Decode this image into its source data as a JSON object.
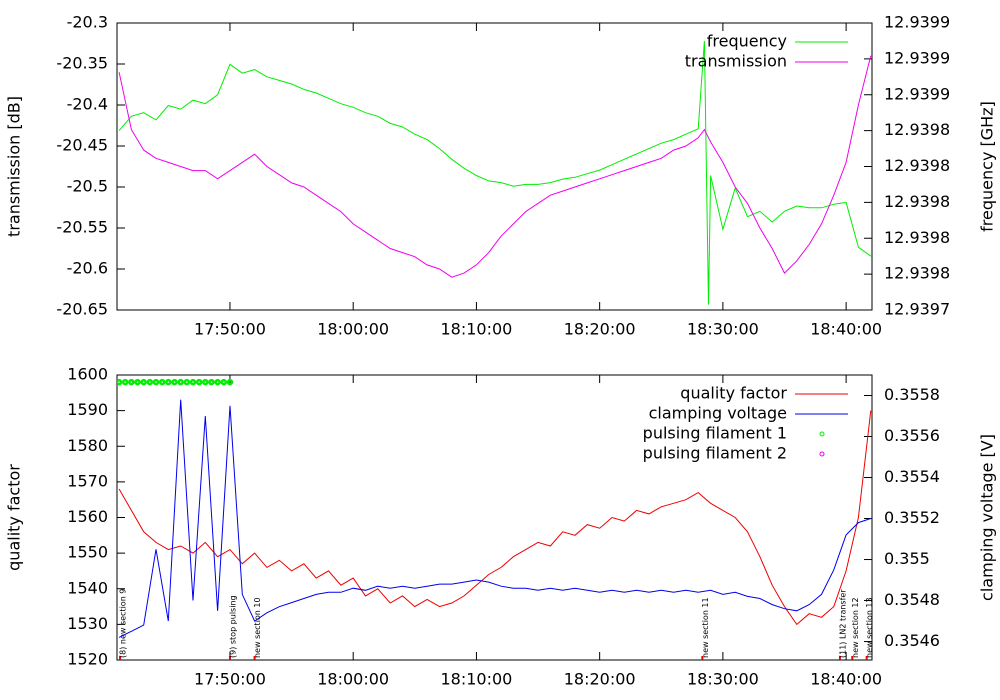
{
  "chart_data": [
    {
      "type": "line",
      "ylabel": "transmission [dB]",
      "y2label": "frequency [GHz]",
      "legend": "upper right",
      "x": [
        "17:41:00",
        "17:42:00",
        "17:43:00",
        "17:44:00",
        "17:45:00",
        "17:46:00",
        "17:47:00",
        "17:48:00",
        "17:49:00",
        "17:50:00",
        "17:51:00",
        "17:52:00",
        "17:53:00",
        "17:54:00",
        "17:55:00",
        "17:56:00",
        "17:57:00",
        "17:58:00",
        "17:59:00",
        "18:00:00",
        "18:01:00",
        "18:02:00",
        "18:03:00",
        "18:04:00",
        "18:05:00",
        "18:06:00",
        "18:07:00",
        "18:08:00",
        "18:09:00",
        "18:10:00",
        "18:11:00",
        "18:12:00",
        "18:13:00",
        "18:14:00",
        "18:15:00",
        "18:16:00",
        "18:17:00",
        "18:18:00",
        "18:19:00",
        "18:20:00",
        "18:21:00",
        "18:22:00",
        "18:23:00",
        "18:24:00",
        "18:25:00",
        "18:26:00",
        "18:27:00",
        "18:28:00",
        "18:28:30",
        "18:28:50",
        "18:29:00",
        "18:30:00",
        "18:31:00",
        "18:32:00",
        "18:33:00",
        "18:34:00",
        "18:35:00",
        "18:36:00",
        "18:37:00",
        "18:38:00",
        "18:39:00",
        "18:40:00",
        "18:41:00",
        "18:42:00"
      ],
      "xlim": [
        "17:40:50",
        "18:42:06"
      ],
      "xticks": [
        "17:50:00",
        "18:00:00",
        "18:10:00",
        "18:20:00",
        "18:30:00",
        "18:40:00"
      ],
      "ylim": [
        -20.65,
        -20.3
      ],
      "yticks": [
        -20.65,
        -20.6,
        -20.55,
        -20.5,
        -20.45,
        -20.4,
        -20.35,
        -20.3
      ],
      "y2lim": [
        12.93974,
        12.9399
      ],
      "y2ticks": [
        {
          "value": 12.93974,
          "label": "12.9397"
        },
        {
          "value": 12.93976,
          "label": "12.9398"
        },
        {
          "value": 12.93978,
          "label": "12.9398"
        },
        {
          "value": 12.9398,
          "label": "12.9398"
        },
        {
          "value": 12.93982,
          "label": "12.9398"
        },
        {
          "value": 12.93984,
          "label": "12.9398"
        },
        {
          "value": 12.93986,
          "label": "12.9399"
        },
        {
          "value": 12.93988,
          "label": "12.9399"
        },
        {
          "value": 12.9399,
          "label": "12.9399"
        }
      ],
      "series": [
        {
          "name": "frequency",
          "color": "#00ee00",
          "axis": "y2",
          "values": [
            12.93984,
            12.939848,
            12.93985,
            12.939846,
            12.939854,
            12.939852,
            12.939857,
            12.939855,
            12.93986,
            12.939877,
            12.939872,
            12.939874,
            12.93987,
            12.939868,
            12.939866,
            12.939863,
            12.939861,
            12.939858,
            12.939855,
            12.939853,
            12.93985,
            12.939848,
            12.939844,
            12.939842,
            12.939838,
            12.939835,
            12.93983,
            12.939824,
            12.939819,
            12.939815,
            12.939812,
            12.939811,
            12.939809,
            12.93981,
            12.93981,
            12.939811,
            12.939813,
            12.939814,
            12.939816,
            12.939818,
            12.939821,
            12.939824,
            12.939827,
            12.93983,
            12.939833,
            12.939835,
            12.939838,
            12.939841,
            12.93989,
            12.939743,
            12.939815,
            12.939785,
            12.939808,
            12.939792,
            12.939795,
            12.939789,
            12.939795,
            12.939798,
            12.939797,
            12.939797,
            12.939799,
            12.9398,
            12.939775,
            12.93977
          ]
        },
        {
          "name": "transmission",
          "color": "#ee00ee",
          "values": [
            -20.36,
            -20.43,
            -20.455,
            -20.465,
            -20.47,
            -20.475,
            -20.48,
            -20.48,
            -20.49,
            -20.48,
            -20.47,
            -20.46,
            -20.475,
            -20.485,
            -20.495,
            -20.5,
            -20.51,
            -20.52,
            -20.53,
            -20.545,
            -20.555,
            -20.565,
            -20.575,
            -20.58,
            -20.585,
            -20.595,
            -20.6,
            -20.61,
            -20.605,
            -20.595,
            -20.58,
            -20.56,
            -20.545,
            -20.53,
            -20.52,
            -20.51,
            -20.505,
            -20.5,
            -20.495,
            -20.49,
            -20.485,
            -20.48,
            -20.475,
            -20.47,
            -20.465,
            -20.455,
            -20.45,
            -20.44,
            -20.43,
            -20.44,
            -20.445,
            -20.47,
            -20.5,
            -20.52,
            -20.55,
            -20.575,
            -20.605,
            -20.59,
            -20.57,
            -20.545,
            -20.51,
            -20.47,
            -20.4,
            -20.34
          ]
        }
      ]
    },
    {
      "type": "line",
      "ylabel": "quality factor",
      "y2label": "clamping voltage [V]",
      "legend": "upper right",
      "x": [
        "17:41:00",
        "17:42:00",
        "17:43:00",
        "17:44:00",
        "17:45:00",
        "17:46:00",
        "17:47:00",
        "17:48:00",
        "17:49:00",
        "17:50:00",
        "17:51:00",
        "17:52:00",
        "17:53:00",
        "17:54:00",
        "17:55:00",
        "17:56:00",
        "17:57:00",
        "17:58:00",
        "17:59:00",
        "18:00:00",
        "18:01:00",
        "18:02:00",
        "18:03:00",
        "18:04:00",
        "18:05:00",
        "18:06:00",
        "18:07:00",
        "18:08:00",
        "18:09:00",
        "18:10:00",
        "18:11:00",
        "18:12:00",
        "18:13:00",
        "18:14:00",
        "18:15:00",
        "18:16:00",
        "18:17:00",
        "18:18:00",
        "18:19:00",
        "18:20:00",
        "18:21:00",
        "18:22:00",
        "18:23:00",
        "18:24:00",
        "18:25:00",
        "18:26:00",
        "18:27:00",
        "18:28:00",
        "18:29:00",
        "18:30:00",
        "18:31:00",
        "18:32:00",
        "18:33:00",
        "18:34:00",
        "18:35:00",
        "18:36:00",
        "18:37:00",
        "18:38:00",
        "18:39:00",
        "18:40:00",
        "18:41:00",
        "18:42:00"
      ],
      "xlim": [
        "17:40:50",
        "18:42:06"
      ],
      "xticks": [
        "17:50:00",
        "18:00:00",
        "18:10:00",
        "18:20:00",
        "18:30:00",
        "18:40:00"
      ],
      "ylim": [
        1520,
        1600
      ],
      "yticks": [
        1520,
        1530,
        1540,
        1550,
        1560,
        1570,
        1580,
        1590,
        1600
      ],
      "y2lim": [
        0.35451,
        0.3559
      ],
      "y2ticks": [
        0.3546,
        0.3548,
        0.355,
        0.3552,
        0.3554,
        0.3556,
        0.3558
      ],
      "series": [
        {
          "name": "quality factor",
          "color": "#ee0000",
          "values": [
            1568,
            1562,
            1556,
            1553,
            1551,
            1552,
            1550,
            1553,
            1549,
            1551,
            1547,
            1550,
            1546,
            1548,
            1545,
            1547,
            1543,
            1545,
            1541,
            1543,
            1538,
            1540,
            1536,
            1538,
            1535,
            1537,
            1535,
            1536,
            1538,
            1541,
            1544,
            1546,
            1549,
            1551,
            1553,
            1552,
            1556,
            1555,
            1558,
            1557,
            1560,
            1559,
            1562,
            1561,
            1563,
            1564,
            1565,
            1567,
            1564,
            1562,
            1560,
            1556,
            1549,
            1541,
            1535,
            1530,
            1533,
            1532,
            1535,
            1545,
            1560,
            1590
          ]
        },
        {
          "name": "clamping voltage",
          "color": "#0000ee",
          "axis": "y2",
          "values": [
            0.35462,
            0.35465,
            0.35468,
            0.35505,
            0.3547,
            0.35578,
            0.3548,
            0.3557,
            0.35475,
            0.35575,
            0.35483,
            0.3547,
            0.35474,
            0.35477,
            0.35479,
            0.35481,
            0.35483,
            0.35484,
            0.35484,
            0.35486,
            0.35485,
            0.35487,
            0.35486,
            0.35487,
            0.35486,
            0.35487,
            0.35488,
            0.35488,
            0.35489,
            0.3549,
            0.35489,
            0.35487,
            0.35486,
            0.35486,
            0.35485,
            0.35486,
            0.35485,
            0.35486,
            0.35485,
            0.35484,
            0.35485,
            0.35484,
            0.35485,
            0.35484,
            0.35485,
            0.35484,
            0.35485,
            0.35484,
            0.35485,
            0.35483,
            0.35484,
            0.35482,
            0.35481,
            0.35478,
            0.35476,
            0.35475,
            0.35478,
            0.35483,
            0.35495,
            0.35512,
            0.35518,
            0.3552
          ]
        },
        {
          "name": "pulsing filament 1",
          "color": "#00ee00",
          "style": "points",
          "x": [
            "17:41:00",
            "17:41:30",
            "17:42:00",
            "17:42:30",
            "17:43:00",
            "17:43:30",
            "17:44:00",
            "17:44:30",
            "17:45:00",
            "17:45:30",
            "17:46:00",
            "17:46:30",
            "17:47:00",
            "17:47:30",
            "17:48:00",
            "17:48:30",
            "17:49:00",
            "17:49:30",
            "17:50:00"
          ],
          "values": [
            1598,
            1598,
            1598,
            1598,
            1598,
            1598,
            1598,
            1598,
            1598,
            1598,
            1598,
            1598,
            1598,
            1598,
            1598,
            1598,
            1598,
            1598,
            1598
          ]
        },
        {
          "name": "pulsing filament 2",
          "color": "#ee00ee",
          "style": "points",
          "x": [],
          "values": []
        }
      ],
      "annotations": [
        {
          "text": "(8) new section 9",
          "x": "17:41:05"
        },
        {
          "text": "(9) stop pulsing",
          "x": "17:50:00"
        },
        {
          "text": "new section 10",
          "x": "17:52:00"
        },
        {
          "text": "new section 11",
          "x": "18:28:20"
        },
        {
          "text": "(11) LN2 transfer",
          "x": "18:39:30"
        },
        {
          "text": "new section 12",
          "x": "18:40:30"
        },
        {
          "text": "new section 13",
          "x": "18:41:40"
        }
      ]
    }
  ]
}
